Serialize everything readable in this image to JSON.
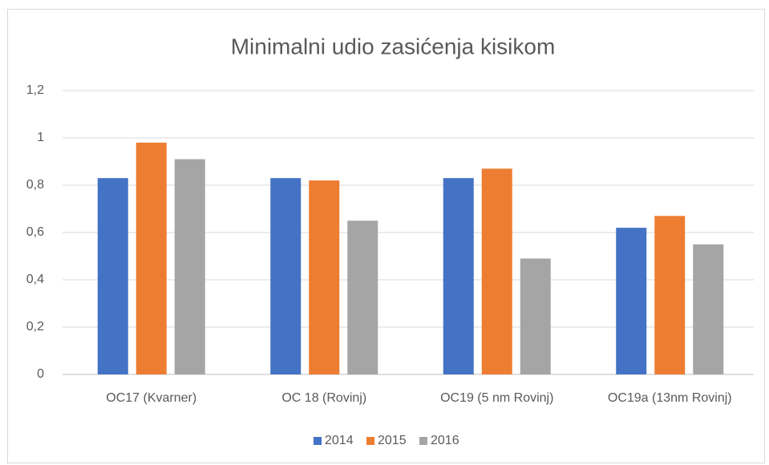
{
  "chart_data": {
    "type": "bar",
    "title": "Minimalni udio zasićenja kisikom",
    "categories": [
      "OC17 (Kvarner)",
      "OC 18 (Rovinj)",
      "OC19 (5 nm Rovinj)",
      "OC19a (13nm Rovinj)"
    ],
    "series": [
      {
        "name": "2014",
        "color": "#4472c4",
        "values": [
          0.83,
          0.83,
          0.83,
          0.62
        ]
      },
      {
        "name": "2015",
        "color": "#ed7d31",
        "values": [
          0.98,
          0.82,
          0.87,
          0.67
        ]
      },
      {
        "name": "2016",
        "color": "#a5a5a5",
        "values": [
          0.91,
          0.65,
          0.49,
          0.55
        ]
      }
    ],
    "ylim": [
      0,
      1.2
    ],
    "yticks": [
      0,
      {
        "value": 0.2,
        "label": "0,2"
      },
      {
        "value": 0.4,
        "label": "0,4"
      },
      {
        "value": 0.6,
        "label": "0,6"
      },
      {
        "value": 0.8,
        "label": "0,8"
      },
      1,
      {
        "value": 1.2,
        "label": "1,2"
      }
    ],
    "grid": true,
    "legend": "bottom"
  }
}
